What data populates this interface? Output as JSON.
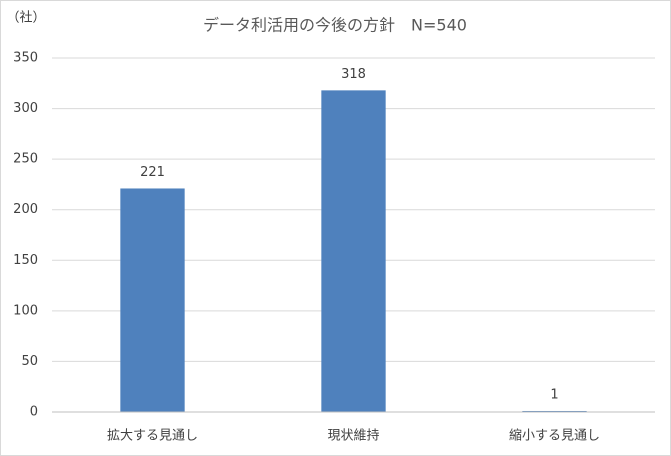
{
  "chart_data": {
    "type": "bar",
    "title": "データ利活用の今後の方針　N=540",
    "y_axis_label": "（社）",
    "categories": [
      "拡大する見通し",
      "現状維持",
      "縮小する見通し"
    ],
    "values": [
      221,
      318,
      1
    ],
    "color": "#4f81bd",
    "ylim": [
      0,
      350
    ],
    "yticks": [
      0,
      50,
      100,
      150,
      200,
      250,
      300,
      350
    ],
    "grid": true
  }
}
